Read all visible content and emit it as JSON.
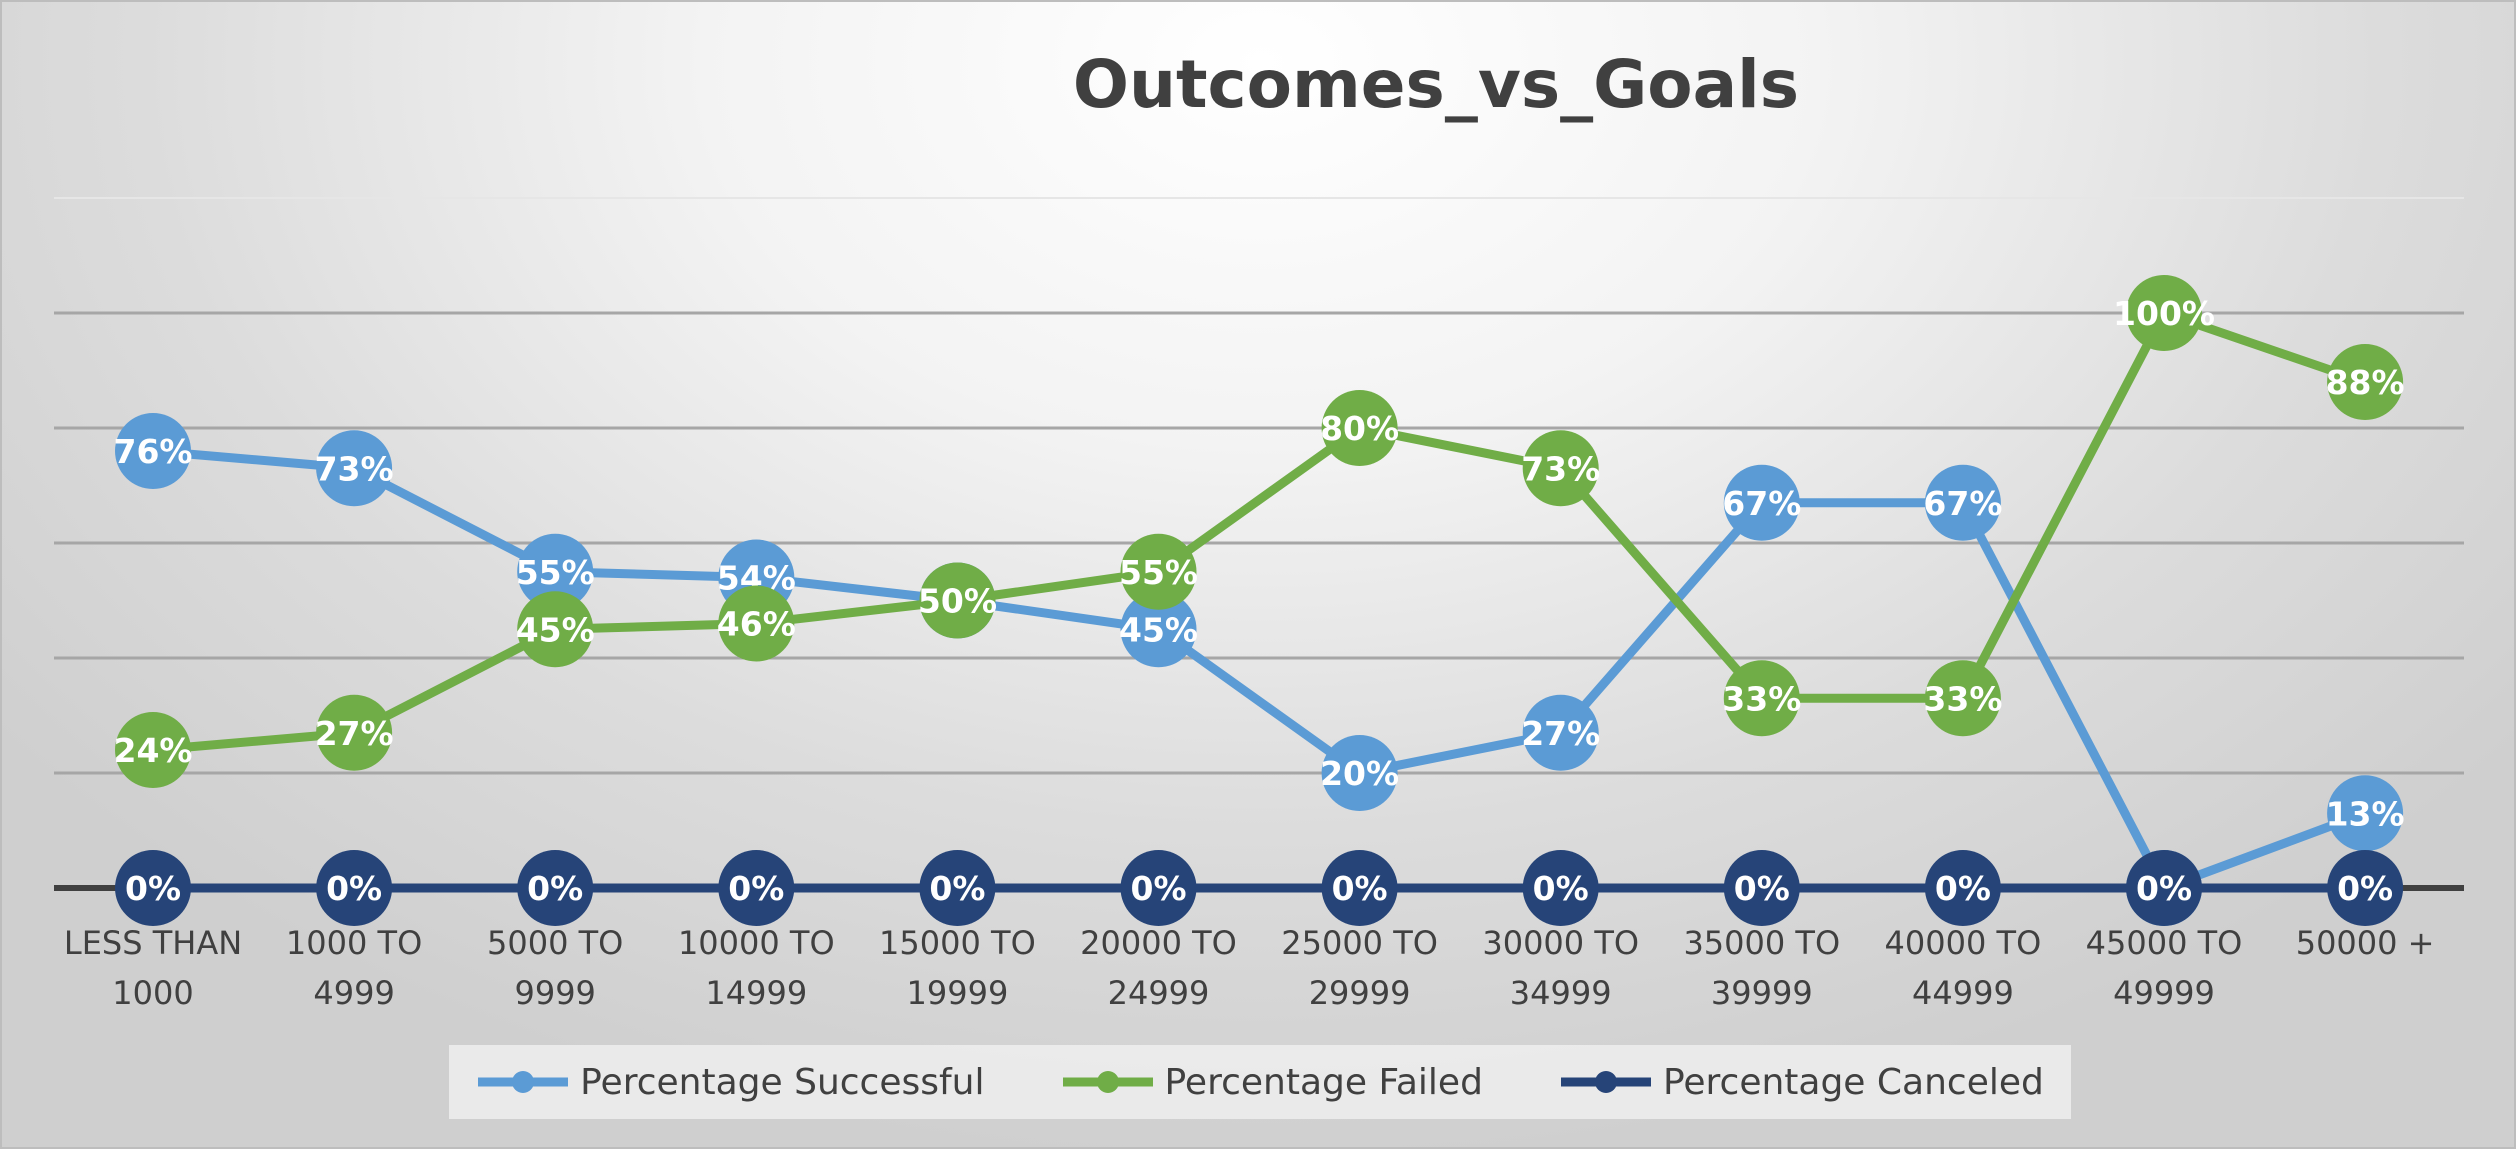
{
  "chart_data": {
    "type": "line",
    "title": "Outcomes_vs_Goals",
    "xlabel": "",
    "ylabel": "",
    "categories": [
      [
        "LESS THAN",
        "1000"
      ],
      [
        "1000 TO",
        "4999"
      ],
      [
        "5000 TO",
        "9999"
      ],
      [
        "10000 TO",
        "14999"
      ],
      [
        "15000 TO",
        "19999"
      ],
      [
        "20000 TO",
        "24999"
      ],
      [
        "25000 TO",
        "29999"
      ],
      [
        "30000 TO",
        "34999"
      ],
      [
        "35000 TO",
        "39999"
      ],
      [
        "40000 TO",
        "44999"
      ],
      [
        "45000 TO",
        "49999"
      ],
      [
        "50000 +"
      ]
    ],
    "series": [
      {
        "name": "Percentage Successful",
        "color": "#5B9BD5",
        "values": [
          76,
          73,
          55,
          54,
          50,
          45,
          20,
          27,
          67,
          67,
          0,
          13
        ],
        "labels": [
          "76%",
          "73%",
          "55%",
          "54%",
          "50%",
          "45%",
          "20%",
          "27%",
          "67%",
          "67%",
          "0%",
          "13%"
        ]
      },
      {
        "name": "Percentage Failed",
        "color": "#70AD47",
        "values": [
          24,
          27,
          45,
          46,
          50,
          55,
          80,
          73,
          33,
          33,
          100,
          88
        ],
        "labels": [
          "24%",
          "27%",
          "45%",
          "46%",
          "50%",
          "55%",
          "80%",
          "73%",
          "33%",
          "33%",
          "100%",
          "88%"
        ]
      },
      {
        "name": "Percentage Canceled",
        "color": "#264478",
        "values": [
          0,
          0,
          0,
          0,
          0,
          0,
          0,
          0,
          0,
          0,
          0,
          0
        ],
        "labels": [
          "0%",
          "0%",
          "0%",
          "0%",
          "0%",
          "0%",
          "0%",
          "0%",
          "0%",
          "0%",
          "0%",
          "0%"
        ]
      }
    ],
    "ylim": [
      0,
      120
    ],
    "y_gridlines": [
      0,
      20,
      40,
      60,
      80,
      100,
      120
    ],
    "grid": true,
    "legend": "bottom",
    "show_y_tick_labels": false,
    "data_labels": true
  }
}
